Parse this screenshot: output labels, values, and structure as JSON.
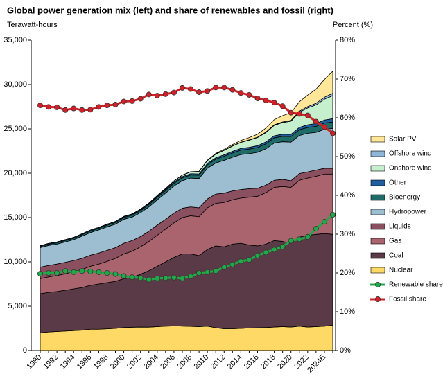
{
  "chart_data": {
    "type": "area",
    "title": "Global power generation mix (left) and share of renewables and fossil (right)",
    "y_label": "Terawatt-hours",
    "y2_label": "Percent (%)",
    "categories": [
      "1990",
      null,
      "1992",
      null,
      "1994",
      null,
      "1996",
      null,
      "1998",
      null,
      "2000",
      null,
      "2002",
      null,
      "2004",
      null,
      "2006",
      null,
      "2008",
      null,
      "2010",
      null,
      "2012",
      null,
      "2014",
      null,
      "2016",
      null,
      "2018",
      null,
      "2020",
      null,
      "2022",
      null,
      "2024E",
      null
    ],
    "ylim": [
      0,
      35000
    ],
    "yticks": [
      {
        "value": 0,
        "label": "0"
      },
      {
        "value": 5000,
        "label": "5,000"
      },
      {
        "value": 10000,
        "label": "10,000"
      },
      {
        "value": 15000,
        "label": "15,000"
      },
      {
        "value": 20000,
        "label": "20,000"
      },
      {
        "value": 25000,
        "label": "25,000"
      },
      {
        "value": 30000,
        "label": "30,000"
      },
      {
        "value": 35000,
        "label": "35,000"
      }
    ],
    "y2lim": [
      0,
      80
    ],
    "y2ticks": [
      {
        "value": 0,
        "label": "0%"
      },
      {
        "value": 10,
        "label": "10%"
      },
      {
        "value": 20,
        "label": "20%"
      },
      {
        "value": 30,
        "label": "30%"
      },
      {
        "value": 40,
        "label": "40%"
      },
      {
        "value": 50,
        "label": "50%"
      },
      {
        "value": 60,
        "label": "60%"
      },
      {
        "value": 70,
        "label": "70%"
      },
      {
        "value": 80,
        "label": "80%"
      }
    ],
    "grid": false,
    "legend": "right",
    "series": [
      {
        "name": "Nuclear",
        "color": "#ffd966",
        "values": [
          2000,
          2100,
          2150,
          2200,
          2250,
          2300,
          2400,
          2400,
          2450,
          2500,
          2600,
          2630,
          2650,
          2640,
          2700,
          2750,
          2780,
          2760,
          2730,
          2700,
          2750,
          2580,
          2450,
          2460,
          2500,
          2550,
          2580,
          2600,
          2650,
          2700,
          2650,
          2750,
          2650,
          2700,
          2750,
          2850
        ]
      },
      {
        "name": "Coal",
        "color": "#5b3a47",
        "values": [
          4400,
          4450,
          4500,
          4600,
          4700,
          4800,
          4950,
          5100,
          5200,
          5300,
          5500,
          5620,
          5950,
          6360,
          6800,
          7250,
          7720,
          8140,
          8170,
          8000,
          8650,
          9220,
          9250,
          9540,
          9600,
          9350,
          9220,
          9400,
          9750,
          9600,
          9450,
          10050,
          10350,
          10400,
          10450,
          10250
        ]
      },
      {
        "name": "Gas",
        "color": "#a9646e",
        "values": [
          1700,
          1750,
          1800,
          1850,
          1950,
          2050,
          2150,
          2250,
          2400,
          2600,
          2800,
          2950,
          3100,
          3300,
          3500,
          3700,
          3900,
          4100,
          4300,
          4400,
          4700,
          4800,
          5000,
          5000,
          5100,
          5400,
          5600,
          5800,
          6000,
          6200,
          6300,
          6400,
          6450,
          6550,
          6700,
          6800
        ]
      },
      {
        "name": "Liquids",
        "color": "#8b5060",
        "values": [
          1300,
          1300,
          1300,
          1300,
          1250,
          1250,
          1250,
          1250,
          1250,
          1200,
          1200,
          1200,
          1150,
          1150,
          1150,
          1100,
          1100,
          1050,
          1000,
          1000,
          1000,
          1050,
          1050,
          1000,
          950,
          950,
          900,
          850,
          800,
          800,
          750,
          750,
          700,
          700,
          650,
          650
        ]
      },
      {
        "name": "Hydropower",
        "color": "#9dbdd1",
        "values": [
          2200,
          2250,
          2250,
          2300,
          2350,
          2500,
          2550,
          2600,
          2650,
          2650,
          2700,
          2650,
          2700,
          2750,
          2850,
          2950,
          3050,
          3100,
          3250,
          3300,
          3450,
          3500,
          3700,
          3800,
          3950,
          3950,
          4050,
          4100,
          4200,
          4250,
          4350,
          4300,
          4350,
          4250,
          4400,
          4500
        ]
      },
      {
        "name": "Bioenergy",
        "color": "#1e6b67",
        "values": [
          130,
          135,
          140,
          150,
          155,
          160,
          170,
          175,
          180,
          190,
          200,
          210,
          230,
          250,
          270,
          290,
          310,
          330,
          350,
          370,
          400,
          430,
          460,
          480,
          500,
          520,
          540,
          560,
          590,
          610,
          630,
          650,
          660,
          680,
          700,
          720
        ]
      },
      {
        "name": "Other",
        "color": "#1f5fa0",
        "values": [
          90,
          90,
          90,
          95,
          95,
          95,
          100,
          100,
          100,
          100,
          100,
          105,
          110,
          115,
          120,
          125,
          130,
          135,
          140,
          145,
          150,
          160,
          170,
          180,
          190,
          200,
          210,
          220,
          230,
          240,
          250,
          270,
          300,
          320,
          350,
          380
        ]
      },
      {
        "name": "Onshore wind",
        "color": "#c6efce",
        "values": [
          4,
          5,
          6,
          7,
          8,
          10,
          12,
          14,
          18,
          22,
          30,
          38,
          50,
          62,
          82,
          102,
          128,
          160,
          210,
          265,
          330,
          410,
          500,
          600,
          680,
          800,
          920,
          1050,
          1170,
          1300,
          1480,
          1700,
          1900,
          2100,
          2350,
          2600
        ]
      },
      {
        "name": "Offshore wind",
        "color": "#8fb6d6",
        "values": [
          0,
          0,
          0,
          0,
          0,
          0,
          0,
          0,
          0,
          0,
          0,
          0,
          0,
          1,
          2,
          3,
          4,
          5,
          6,
          8,
          10,
          15,
          20,
          25,
          30,
          40,
          45,
          60,
          70,
          85,
          100,
          130,
          150,
          180,
          220,
          260
        ]
      },
      {
        "name": "Solar PV",
        "color": "#ffe699",
        "values": [
          0,
          0,
          0,
          0,
          0,
          0,
          0,
          0,
          0,
          0,
          1,
          1,
          2,
          2,
          3,
          4,
          5,
          8,
          12,
          20,
          32,
          64,
          100,
          140,
          190,
          256,
          330,
          450,
          580,
          700,
          850,
          1050,
          1300,
          1600,
          2000,
          2500
        ]
      },
      {
        "name": "Renewable share",
        "color": "#22a849",
        "axis": "y2",
        "values": [
          19.8,
          20.0,
          20.0,
          20.5,
          20.2,
          20.5,
          20.4,
          20.2,
          20.0,
          19.7,
          19.2,
          18.9,
          18.7,
          18.3,
          18.6,
          18.7,
          18.8,
          18.6,
          19.1,
          20.0,
          20.2,
          20.5,
          21.5,
          22.2,
          23.0,
          23.4,
          24.5,
          25.3,
          26.0,
          26.8,
          28.3,
          28.7,
          29.3,
          31.4,
          33.2,
          35.0
        ]
      },
      {
        "name": "Fossil share",
        "color": "#d12027",
        "axis": "y2",
        "values": [
          63.2,
          62.8,
          62.7,
          62.0,
          62.4,
          62.0,
          62.1,
          62.8,
          63.2,
          63.4,
          64.2,
          64.3,
          64.9,
          66.0,
          65.7,
          66.1,
          66.5,
          67.7,
          67.4,
          66.6,
          66.9,
          67.8,
          67.8,
          67.2,
          66.4,
          65.9,
          65.0,
          64.5,
          63.9,
          63.0,
          61.3,
          61.0,
          60.6,
          59.0,
          57.6,
          56.0
        ]
      }
    ]
  }
}
